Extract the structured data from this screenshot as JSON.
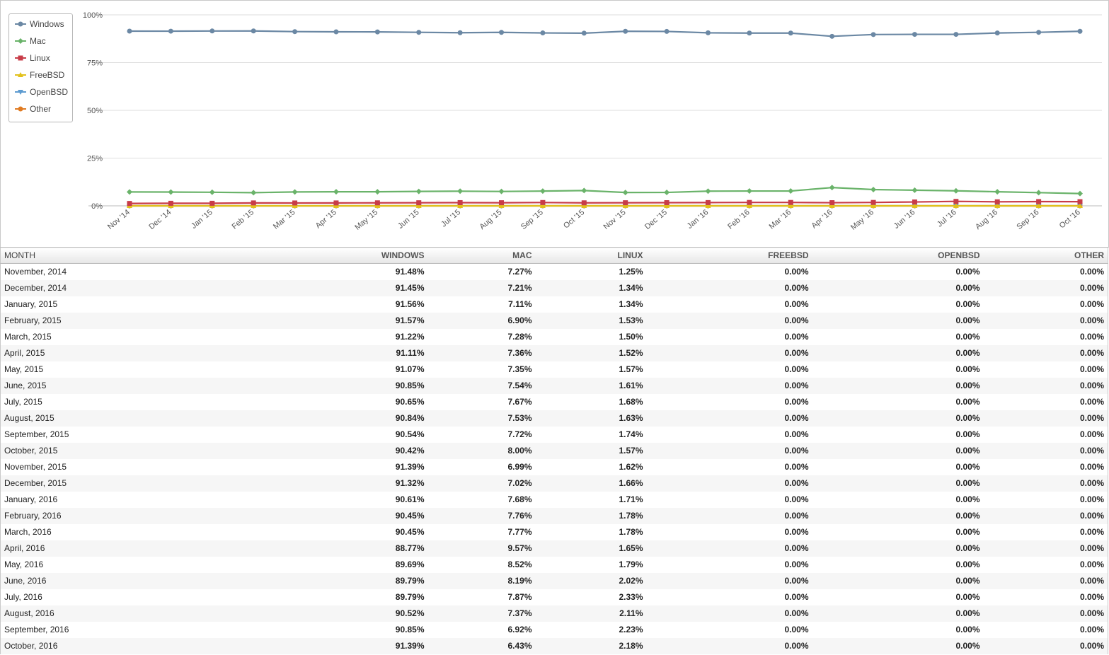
{
  "chart_data": {
    "type": "line",
    "categories": [
      "Nov '14",
      "Dec '14",
      "Jan '15",
      "Feb '15",
      "Mar '15",
      "Apr '15",
      "May '15",
      "Jun '15",
      "Jul '15",
      "Aug '15",
      "Sep '15",
      "Oct '15",
      "Nov '15",
      "Dec '15",
      "Jan '16",
      "Feb '16",
      "Mar '16",
      "Apr '16",
      "May '16",
      "Jun '16",
      "Jul '16",
      "Aug '16",
      "Sep '16",
      "Oct '16"
    ],
    "y_ticks": [
      "0%",
      "25%",
      "50%",
      "75%",
      "100%"
    ],
    "ylim": [
      0,
      100
    ],
    "grid": true,
    "legend_position": "top-left",
    "series": [
      {
        "name": "Windows",
        "color": "#6b88a4",
        "marker": "circle",
        "values": [
          91.48,
          91.45,
          91.56,
          91.57,
          91.22,
          91.11,
          91.07,
          90.85,
          90.65,
          90.84,
          90.54,
          90.42,
          91.39,
          91.32,
          90.61,
          90.45,
          90.45,
          88.77,
          89.69,
          89.79,
          89.79,
          90.52,
          90.85,
          91.39
        ]
      },
      {
        "name": "Mac",
        "color": "#6ab36a",
        "marker": "diamond",
        "values": [
          7.27,
          7.21,
          7.11,
          6.9,
          7.28,
          7.36,
          7.35,
          7.54,
          7.67,
          7.53,
          7.72,
          8.0,
          6.99,
          7.02,
          7.68,
          7.76,
          7.77,
          9.57,
          8.52,
          8.19,
          7.87,
          7.37,
          6.92,
          6.43
        ]
      },
      {
        "name": "Linux",
        "color": "#c83c48",
        "marker": "square",
        "values": [
          1.25,
          1.34,
          1.34,
          1.53,
          1.5,
          1.52,
          1.57,
          1.61,
          1.68,
          1.63,
          1.74,
          1.57,
          1.62,
          1.66,
          1.71,
          1.78,
          1.78,
          1.65,
          1.79,
          2.02,
          2.33,
          2.11,
          2.23,
          2.18
        ]
      },
      {
        "name": "FreeBSD",
        "color": "#e2c11c",
        "marker": "triangle",
        "values": [
          0,
          0,
          0,
          0,
          0,
          0,
          0,
          0,
          0,
          0,
          0,
          0,
          0,
          0,
          0,
          0,
          0,
          0,
          0,
          0,
          0,
          0,
          0,
          0
        ]
      },
      {
        "name": "OpenBSD",
        "color": "#5d9bd0",
        "marker": "triangle-down",
        "values": [
          0,
          0,
          0,
          0,
          0,
          0,
          0,
          0,
          0,
          0,
          0,
          0,
          0,
          0,
          0,
          0,
          0,
          0,
          0,
          0,
          0,
          0,
          0,
          0
        ]
      },
      {
        "name": "Other",
        "color": "#e07b22",
        "marker": "circle",
        "values": [
          0,
          0,
          0,
          0,
          0,
          0,
          0,
          0,
          0,
          0,
          0,
          0,
          0,
          0,
          0,
          0,
          0,
          0,
          0,
          0,
          0,
          0,
          0,
          0
        ]
      }
    ]
  },
  "table": {
    "headers": [
      "MONTH",
      "WINDOWS",
      "MAC",
      "LINUX",
      "FREEBSD",
      "OPENBSD",
      "OTHER"
    ],
    "rows": [
      [
        "November, 2014",
        "91.48%",
        "7.27%",
        "1.25%",
        "0.00%",
        "0.00%",
        "0.00%"
      ],
      [
        "December, 2014",
        "91.45%",
        "7.21%",
        "1.34%",
        "0.00%",
        "0.00%",
        "0.00%"
      ],
      [
        "January, 2015",
        "91.56%",
        "7.11%",
        "1.34%",
        "0.00%",
        "0.00%",
        "0.00%"
      ],
      [
        "February, 2015",
        "91.57%",
        "6.90%",
        "1.53%",
        "0.00%",
        "0.00%",
        "0.00%"
      ],
      [
        "March, 2015",
        "91.22%",
        "7.28%",
        "1.50%",
        "0.00%",
        "0.00%",
        "0.00%"
      ],
      [
        "April, 2015",
        "91.11%",
        "7.36%",
        "1.52%",
        "0.00%",
        "0.00%",
        "0.00%"
      ],
      [
        "May, 2015",
        "91.07%",
        "7.35%",
        "1.57%",
        "0.00%",
        "0.00%",
        "0.00%"
      ],
      [
        "June, 2015",
        "90.85%",
        "7.54%",
        "1.61%",
        "0.00%",
        "0.00%",
        "0.00%"
      ],
      [
        "July, 2015",
        "90.65%",
        "7.67%",
        "1.68%",
        "0.00%",
        "0.00%",
        "0.00%"
      ],
      [
        "August, 2015",
        "90.84%",
        "7.53%",
        "1.63%",
        "0.00%",
        "0.00%",
        "0.00%"
      ],
      [
        "September, 2015",
        "90.54%",
        "7.72%",
        "1.74%",
        "0.00%",
        "0.00%",
        "0.00%"
      ],
      [
        "October, 2015",
        "90.42%",
        "8.00%",
        "1.57%",
        "0.00%",
        "0.00%",
        "0.00%"
      ],
      [
        "November, 2015",
        "91.39%",
        "6.99%",
        "1.62%",
        "0.00%",
        "0.00%",
        "0.00%"
      ],
      [
        "December, 2015",
        "91.32%",
        "7.02%",
        "1.66%",
        "0.00%",
        "0.00%",
        "0.00%"
      ],
      [
        "January, 2016",
        "90.61%",
        "7.68%",
        "1.71%",
        "0.00%",
        "0.00%",
        "0.00%"
      ],
      [
        "February, 2016",
        "90.45%",
        "7.76%",
        "1.78%",
        "0.00%",
        "0.00%",
        "0.00%"
      ],
      [
        "March, 2016",
        "90.45%",
        "7.77%",
        "1.78%",
        "0.00%",
        "0.00%",
        "0.00%"
      ],
      [
        "April, 2016",
        "88.77%",
        "9.57%",
        "1.65%",
        "0.00%",
        "0.00%",
        "0.00%"
      ],
      [
        "May, 2016",
        "89.69%",
        "8.52%",
        "1.79%",
        "0.00%",
        "0.00%",
        "0.00%"
      ],
      [
        "June, 2016",
        "89.79%",
        "8.19%",
        "2.02%",
        "0.00%",
        "0.00%",
        "0.00%"
      ],
      [
        "July, 2016",
        "89.79%",
        "7.87%",
        "2.33%",
        "0.00%",
        "0.00%",
        "0.00%"
      ],
      [
        "August, 2016",
        "90.52%",
        "7.37%",
        "2.11%",
        "0.00%",
        "0.00%",
        "0.00%"
      ],
      [
        "September, 2016",
        "90.85%",
        "6.92%",
        "2.23%",
        "0.00%",
        "0.00%",
        "0.00%"
      ],
      [
        "October, 2016",
        "91.39%",
        "6.43%",
        "2.18%",
        "0.00%",
        "0.00%",
        "0.00%"
      ]
    ]
  }
}
